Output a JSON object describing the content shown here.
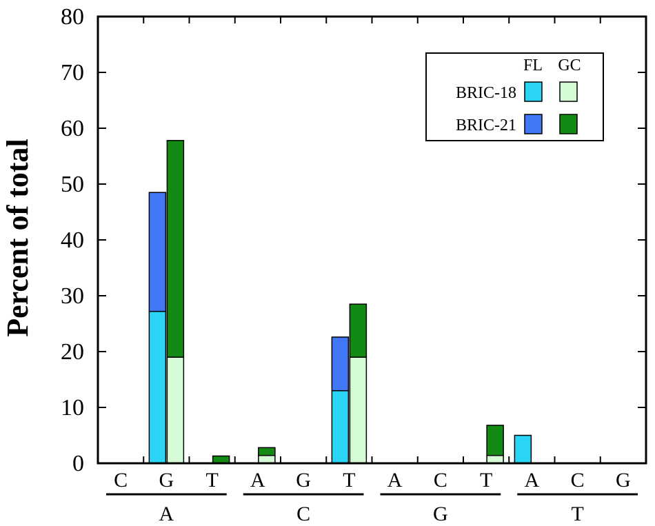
{
  "chart_data": {
    "type": "bar",
    "ylabel": "Percent of total",
    "ylim": [
      0,
      80
    ],
    "yticks": [
      "0",
      "10",
      "20",
      "30",
      "40",
      "50",
      "60",
      "70",
      "80"
    ],
    "groups": [
      {
        "label": "A",
        "subcategories": [
          "C",
          "G",
          "T"
        ]
      },
      {
        "label": "C",
        "subcategories": [
          "A",
          "G",
          "T"
        ]
      },
      {
        "label": "G",
        "subcategories": [
          "A",
          "C",
          "T"
        ]
      },
      {
        "label": "T",
        "subcategories": [
          "A",
          "C",
          "G"
        ]
      }
    ],
    "categories": [
      "A>C",
      "A>G",
      "A>T",
      "C>A",
      "C>G",
      "C>T",
      "G>A",
      "G>C",
      "G>T",
      "T>A",
      "T>C",
      "T>G"
    ],
    "stack_groups": [
      "FL",
      "GC"
    ],
    "series": [
      {
        "name": "BRIC-18",
        "stack": "FL",
        "color": "#29d4f5",
        "values": [
          0,
          27.2,
          0,
          0,
          0,
          13,
          0,
          0,
          0,
          5,
          0,
          0
        ]
      },
      {
        "name": "BRIC-21",
        "stack": "FL",
        "color": "#4178f5",
        "values": [
          0,
          21.3,
          0,
          0,
          0,
          9.6,
          0,
          0,
          0,
          0,
          0,
          0
        ]
      },
      {
        "name": "BRIC-18",
        "stack": "GC",
        "color": "#d4fbd6",
        "values": [
          0,
          19,
          0,
          1.4,
          0,
          19,
          0,
          0,
          1.4,
          0,
          0,
          0
        ]
      },
      {
        "name": "BRIC-21",
        "stack": "GC",
        "color": "#138a13",
        "values": [
          0,
          38.8,
          1.3,
          1.4,
          0,
          9.5,
          0,
          0,
          5.4,
          0,
          0,
          0
        ]
      }
    ],
    "legend": {
      "position": "top-right",
      "column_headers": [
        "FL",
        "GC"
      ],
      "rows": [
        "BRIC-18",
        "BRIC-21"
      ]
    },
    "grid": false
  }
}
